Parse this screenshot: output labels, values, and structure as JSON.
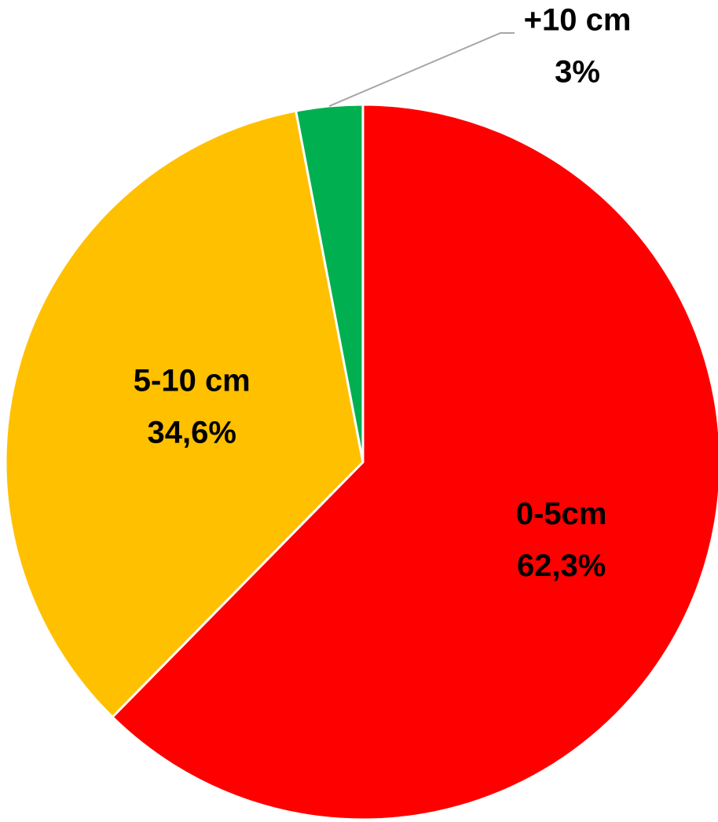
{
  "chart_data": {
    "type": "pie",
    "categories": [
      "0-5cm",
      "5-10 cm",
      "+10 cm"
    ],
    "values": [
      62.3,
      34.6,
      3
    ],
    "value_labels": [
      "62,3%",
      "34,6%",
      "3%"
    ],
    "colors": [
      "#ff0000",
      "#ffc000",
      "#00b050"
    ]
  }
}
